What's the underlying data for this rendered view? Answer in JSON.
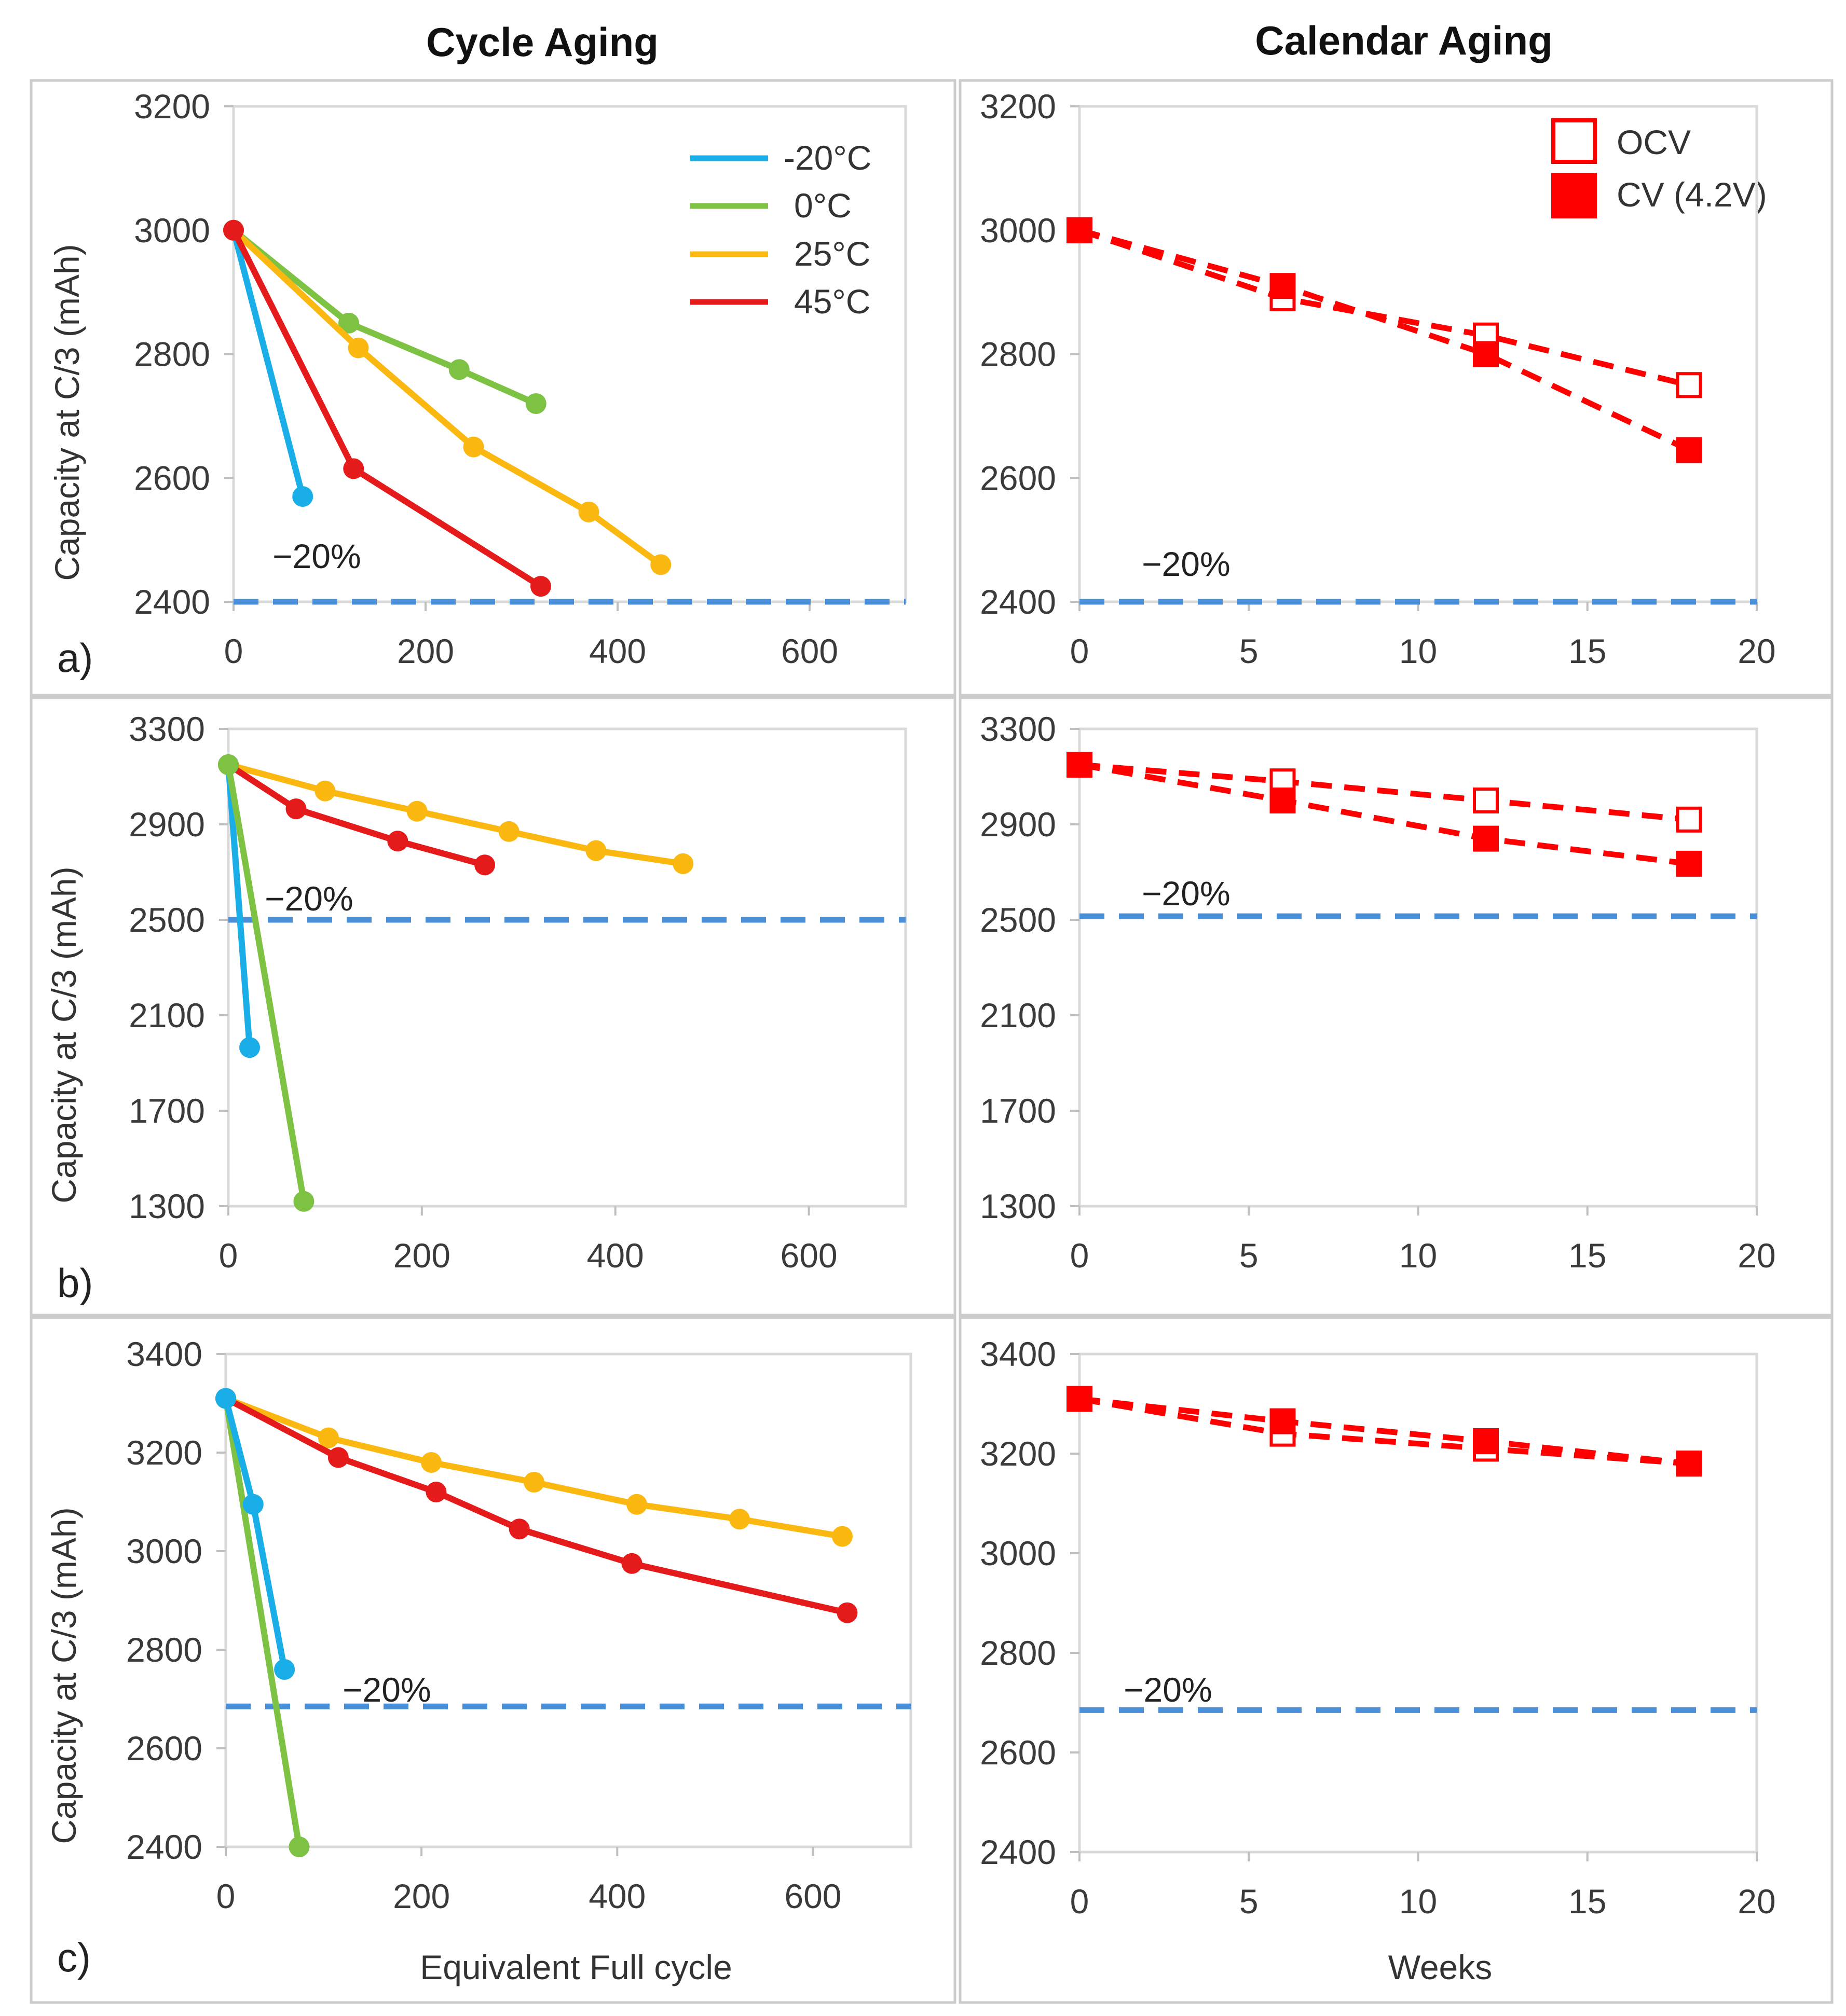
{
  "figure": {
    "headers": {
      "left": "Cycle Aging",
      "right": "Calendar Aging"
    },
    "panel_labels": [
      "a)",
      "b)",
      "c)"
    ],
    "threshold_text": "−20%"
  },
  "colors": {
    "m20": "#1aaee8",
    "0": "#7dc243",
    "25": "#fbb811",
    "45": "#e51b1b",
    "calendar": "#ff0000",
    "threshold": "#4a90d9",
    "axis": "#d9d9d9",
    "frame": "#cccccc",
    "text": "#3a3a3a"
  },
  "chart_data": [
    {
      "id": "a-cycle",
      "type": "line",
      "panel": "a)",
      "xlabel": "",
      "ylabel": "Capacity at C/3 (mAh)",
      "xlim": [
        0,
        700
      ],
      "ylim": [
        2400,
        3200
      ],
      "xticks": [
        0,
        200,
        400,
        600
      ],
      "yticks": [
        2400,
        2600,
        2800,
        3000,
        3200
      ],
      "threshold": 2400,
      "legend": [
        "-20°C",
        "0°C",
        "25°C",
        "45°C"
      ],
      "series": [
        {
          "name": "-20°C",
          "color": "m20",
          "x": [
            0,
            72
          ],
          "y": [
            3000,
            2570
          ]
        },
        {
          "name": "0°C",
          "color": "0",
          "x": [
            0,
            120,
            235,
            315
          ],
          "y": [
            3000,
            2850,
            2775,
            2720
          ]
        },
        {
          "name": "25°C",
          "color": "25",
          "x": [
            0,
            130,
            250,
            370,
            445
          ],
          "y": [
            3000,
            2810,
            2650,
            2545,
            2460
          ]
        },
        {
          "name": "45°C",
          "color": "45",
          "x": [
            0,
            125,
            320
          ],
          "y": [
            3000,
            2615,
            2425
          ]
        }
      ]
    },
    {
      "id": "a-cal",
      "type": "line",
      "panel": "a)",
      "xlabel": "",
      "ylabel": "",
      "xlim": [
        0,
        20
      ],
      "ylim": [
        2400,
        3200
      ],
      "xticks": [
        0,
        5,
        10,
        15,
        20
      ],
      "yticks": [
        2400,
        2600,
        2800,
        3000,
        3200
      ],
      "threshold": 2400,
      "legend": [
        "OCV",
        "CV (4.2V)"
      ],
      "series": [
        {
          "name": "OCV",
          "x": [
            0,
            6,
            12,
            18
          ],
          "y": [
            3000,
            2890,
            2830,
            2750
          ]
        },
        {
          "name": "CV (4.2V)",
          "x": [
            0,
            6,
            12,
            18
          ],
          "y": [
            3000,
            2910,
            2800,
            2645
          ]
        }
      ]
    },
    {
      "id": "b-cycle",
      "type": "line",
      "panel": "b)",
      "xlabel": "",
      "ylabel": "Capacity at C/3 (mAh)",
      "xlim": [
        0,
        700
      ],
      "ylim": [
        1300,
        3300
      ],
      "xticks": [
        0,
        200,
        400,
        600
      ],
      "yticks": [
        1300,
        1700,
        2100,
        2500,
        2900,
        3300
      ],
      "threshold": 2500,
      "series": [
        {
          "name": "25°C",
          "color": "25",
          "x": [
            0,
            100,
            195,
            290,
            380,
            470
          ],
          "y": [
            3150,
            3040,
            2955,
            2870,
            2790,
            2735
          ]
        },
        {
          "name": "45°C",
          "color": "45",
          "x": [
            0,
            70,
            175,
            265
          ],
          "y": [
            3150,
            2965,
            2830,
            2730
          ]
        },
        {
          "name": "-20°C",
          "color": "m20",
          "x": [
            0,
            22
          ],
          "y": [
            3150,
            1965
          ]
        },
        {
          "name": "0°C",
          "color": "0",
          "x": [
            0,
            78
          ],
          "y": [
            3150,
            1320
          ]
        }
      ]
    },
    {
      "id": "b-cal",
      "type": "line",
      "panel": "b)",
      "xlabel": "",
      "ylabel": "",
      "xlim": [
        0,
        20
      ],
      "ylim": [
        1300,
        3300
      ],
      "xticks": [
        0,
        5,
        10,
        15,
        20
      ],
      "yticks": [
        1300,
        1700,
        2100,
        2500,
        2900,
        3300
      ],
      "threshold": 2515,
      "series": [
        {
          "name": "OCV",
          "x": [
            0,
            6,
            12,
            18
          ],
          "y": [
            3150,
            3080,
            3000,
            2920
          ]
        },
        {
          "name": "CV (4.2V)",
          "x": [
            0,
            6,
            12,
            18
          ],
          "y": [
            3150,
            3000,
            2840,
            2735
          ]
        }
      ]
    },
    {
      "id": "c-cycle",
      "type": "line",
      "panel": "c)",
      "xlabel": "Equivalent Full cycle",
      "ylabel": "Capacity at C/3 (mAh)",
      "xlim": [
        0,
        700
      ],
      "ylim": [
        2400,
        3400
      ],
      "xticks": [
        0,
        200,
        400,
        600
      ],
      "yticks": [
        2400,
        2600,
        2800,
        3000,
        3200,
        3400
      ],
      "threshold": 2685,
      "series": [
        {
          "name": "25°C",
          "color": "25",
          "x": [
            0,
            105,
            210,
            315,
            420,
            525,
            630
          ],
          "y": [
            3310,
            3230,
            3180,
            3140,
            3095,
            3065,
            3030
          ]
        },
        {
          "name": "45°C",
          "color": "45",
          "x": [
            0,
            115,
            215,
            300,
            415,
            635
          ],
          "y": [
            3310,
            3190,
            3120,
            3045,
            2975,
            2875
          ]
        },
        {
          "name": "0°C",
          "color": "0",
          "x": [
            0,
            75
          ],
          "y": [
            3310,
            2400
          ]
        },
        {
          "name": "-20°C",
          "color": "m20",
          "x": [
            0,
            28,
            60
          ],
          "y": [
            3310,
            3095,
            2760
          ]
        }
      ]
    },
    {
      "id": "c-cal",
      "type": "line",
      "panel": "c)",
      "xlabel": "Weeks",
      "ylabel": "",
      "xlim": [
        0,
        20
      ],
      "ylim": [
        2400,
        3400
      ],
      "xticks": [
        0,
        5,
        10,
        15,
        20
      ],
      "yticks": [
        2400,
        2600,
        2800,
        3000,
        3200,
        3400
      ],
      "threshold": 2685,
      "series": [
        {
          "name": "OCV",
          "x": [
            0,
            6,
            12,
            18
          ],
          "y": [
            3310,
            3240,
            3210,
            3180
          ]
        },
        {
          "name": "CV (4.2V)",
          "x": [
            0,
            6,
            12,
            18
          ],
          "y": [
            3310,
            3265,
            3225,
            3180
          ]
        }
      ]
    }
  ]
}
